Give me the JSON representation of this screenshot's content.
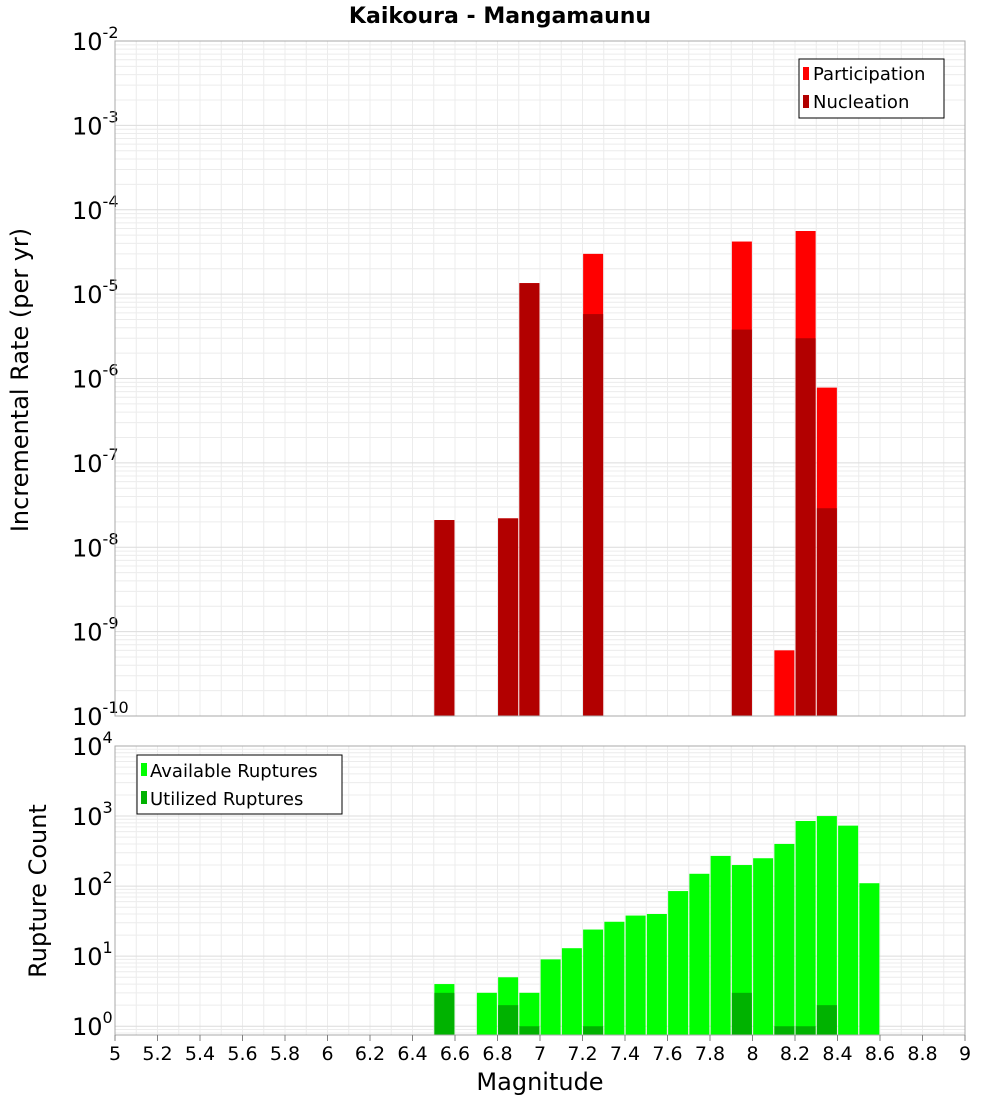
{
  "chart_data": [
    {
      "type": "bar",
      "title": "Kaikoura - Mangamaunu",
      "xlabel": "Magnitude",
      "ylabel": "Incremental Rate (per yr)",
      "y_scale": "log",
      "ylim": [
        1e-10,
        0.01
      ],
      "xlim": [
        5,
        9
      ],
      "grid": true,
      "legend_position": "top-right",
      "y_tick_bases": [
        "10",
        "10",
        "10",
        "10",
        "10",
        "10",
        "10",
        "10",
        "10"
      ],
      "y_tick_exps": [
        "-10",
        "-9",
        "-8",
        "-7",
        "-6",
        "-5",
        "-4",
        "-3",
        "-2"
      ],
      "series": [
        {
          "name": "Participation",
          "color": "#ff0000",
          "points": [
            {
              "x": 6.55,
              "y": 2.1e-08
            },
            {
              "x": 6.85,
              "y": 2.2e-08
            },
            {
              "x": 6.95,
              "y": 1.35e-05
            },
            {
              "x": 7.25,
              "y": 3e-05
            },
            {
              "x": 7.95,
              "y": 4.2e-05
            },
            {
              "x": 8.15,
              "y": 6e-10
            },
            {
              "x": 8.25,
              "y": 5.6e-05
            },
            {
              "x": 8.35,
              "y": 7.8e-07
            }
          ]
        },
        {
          "name": "Nucleation",
          "color": "#b20000",
          "points": [
            {
              "x": 6.55,
              "y": 2.1e-08
            },
            {
              "x": 6.85,
              "y": 2.2e-08
            },
            {
              "x": 6.95,
              "y": 1.35e-05
            },
            {
              "x": 7.25,
              "y": 5.8e-06
            },
            {
              "x": 7.95,
              "y": 3.8e-06
            },
            {
              "x": 8.25,
              "y": 3e-06
            },
            {
              "x": 8.35,
              "y": 2.9e-08
            }
          ]
        }
      ]
    },
    {
      "type": "bar",
      "xlabel": "Magnitude",
      "ylabel": "Rupture Count",
      "y_scale": "log",
      "ylim": [
        0.75,
        10000
      ],
      "xlim": [
        5,
        9
      ],
      "grid": true,
      "legend_position": "top-left",
      "x_ticks": [
        "5",
        "5.2",
        "5.4",
        "5.6",
        "5.8",
        "6",
        "6.2",
        "6.4",
        "6.6",
        "6.8",
        "7",
        "7.2",
        "7.4",
        "7.6",
        "7.8",
        "8",
        "8.2",
        "8.4",
        "8.6",
        "8.8",
        "9"
      ],
      "y_tick_bases": [
        "10",
        "10",
        "10",
        "10",
        "10"
      ],
      "y_tick_exps": [
        "0",
        "1",
        "2",
        "3",
        "4"
      ],
      "series": [
        {
          "name": "Available Ruptures",
          "color": "#00ff00",
          "points": [
            {
              "x": 6.55,
              "y": 4
            },
            {
              "x": 6.75,
              "y": 3
            },
            {
              "x": 6.85,
              "y": 5
            },
            {
              "x": 6.95,
              "y": 3
            },
            {
              "x": 7.05,
              "y": 9
            },
            {
              "x": 7.15,
              "y": 13
            },
            {
              "x": 7.25,
              "y": 24
            },
            {
              "x": 7.35,
              "y": 31
            },
            {
              "x": 7.45,
              "y": 38
            },
            {
              "x": 7.55,
              "y": 40
            },
            {
              "x": 7.65,
              "y": 85
            },
            {
              "x": 7.75,
              "y": 150
            },
            {
              "x": 7.85,
              "y": 270
            },
            {
              "x": 7.95,
              "y": 200
            },
            {
              "x": 8.05,
              "y": 250
            },
            {
              "x": 8.15,
              "y": 400
            },
            {
              "x": 8.25,
              "y": 850
            },
            {
              "x": 8.35,
              "y": 1000
            },
            {
              "x": 8.45,
              "y": 730
            },
            {
              "x": 8.55,
              "y": 110
            }
          ]
        },
        {
          "name": "Utilized Ruptures",
          "color": "#00b200",
          "points": [
            {
              "x": 6.55,
              "y": 3
            },
            {
              "x": 6.85,
              "y": 2
            },
            {
              "x": 6.95,
              "y": 1
            },
            {
              "x": 7.25,
              "y": 1
            },
            {
              "x": 7.95,
              "y": 3
            },
            {
              "x": 8.15,
              "y": 1
            },
            {
              "x": 8.25,
              "y": 1
            },
            {
              "x": 8.35,
              "y": 2
            }
          ]
        }
      ]
    }
  ]
}
